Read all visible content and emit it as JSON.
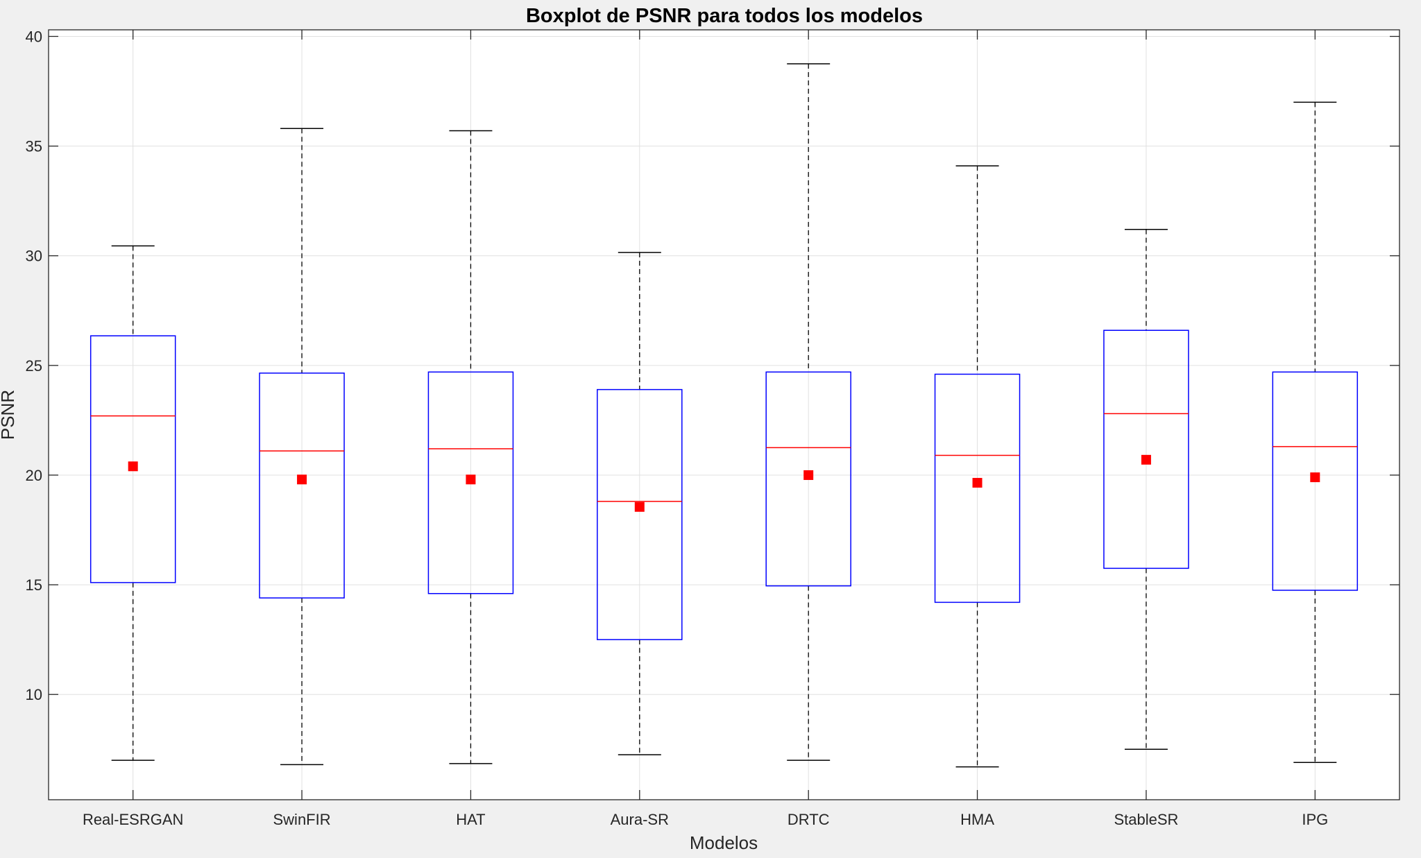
{
  "chart_data": {
    "type": "boxplot",
    "title": "Boxplot de PSNR para todos los modelos",
    "xlabel": "Modelos",
    "ylabel": "PSNR",
    "ylim": [
      5.2,
      40.3
    ],
    "yticks": [
      10,
      15,
      20,
      25,
      30,
      35,
      40
    ],
    "grid": true,
    "categories": [
      "Real-ESRGAN",
      "SwinFIR",
      "HAT",
      "Aura-SR",
      "DRTC",
      "HMA",
      "StableSR",
      "IPG"
    ],
    "boxes": [
      {
        "name": "Real-ESRGAN",
        "whisker_low": 7.0,
        "q1": 15.1,
        "median": 22.7,
        "q3": 26.35,
        "whisker_high": 30.45,
        "mean": 20.4
      },
      {
        "name": "SwinFIR",
        "whisker_low": 6.8,
        "q1": 14.4,
        "median": 21.1,
        "q3": 24.65,
        "whisker_high": 35.8,
        "mean": 19.8
      },
      {
        "name": "HAT",
        "whisker_low": 6.85,
        "q1": 14.6,
        "median": 21.2,
        "q3": 24.7,
        "whisker_high": 35.7,
        "mean": 19.8
      },
      {
        "name": "Aura-SR",
        "whisker_low": 7.25,
        "q1": 12.5,
        "median": 18.8,
        "q3": 23.9,
        "whisker_high": 30.15,
        "mean": 18.55
      },
      {
        "name": "DRTC",
        "whisker_low": 7.0,
        "q1": 14.95,
        "median": 21.25,
        "q3": 24.7,
        "whisker_high": 38.75,
        "mean": 20.0
      },
      {
        "name": "HMA",
        "whisker_low": 6.7,
        "q1": 14.2,
        "median": 20.9,
        "q3": 24.6,
        "whisker_high": 34.1,
        "mean": 19.65
      },
      {
        "name": "StableSR",
        "whisker_low": 7.5,
        "q1": 15.75,
        "median": 22.8,
        "q3": 26.6,
        "whisker_high": 31.2,
        "mean": 20.7
      },
      {
        "name": "IPG",
        "whisker_low": 6.9,
        "q1": 14.75,
        "median": 21.3,
        "q3": 24.7,
        "whisker_high": 37.0,
        "mean": 19.9
      }
    ],
    "colors": {
      "box": "#0000ff",
      "median": "#ff0000",
      "mean_marker": "#ff0000",
      "whisker": "#000000",
      "grid": "#e0e0e0",
      "axes": "#262626"
    }
  }
}
